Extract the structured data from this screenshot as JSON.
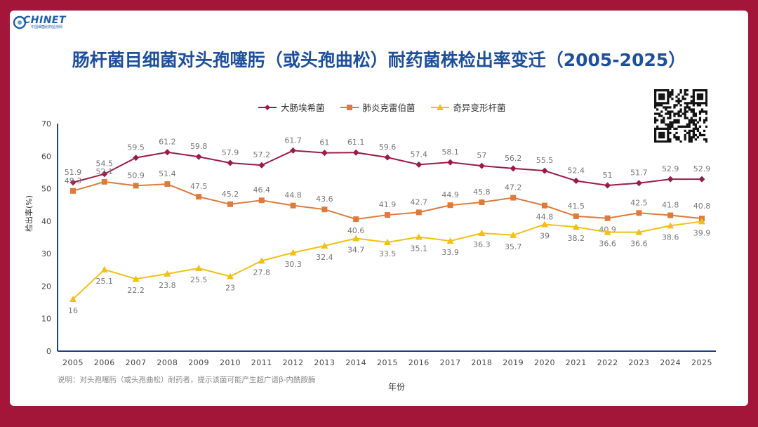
{
  "header": {
    "logo_text": "CHINET",
    "logo_sub": "中国细菌耐药监测网"
  },
  "chart_data": {
    "type": "line",
    "title": "肠杆菌目细菌对头孢噻肟（或头孢曲松）耐药菌株检出率变迁（2005-2025）",
    "xlabel": "年份",
    "ylabel": "检出率(%)",
    "ylim": [
      0,
      70
    ],
    "yticks": [
      0,
      10,
      20,
      30,
      40,
      50,
      60,
      70
    ],
    "x": [
      "2005",
      "2006",
      "2007",
      "2008",
      "2009",
      "2010",
      "2011",
      "2012",
      "2013",
      "2014",
      "2015",
      "2016",
      "2017",
      "2018",
      "2019",
      "2020",
      "2021",
      "2022",
      "2023",
      "2024",
      "2025"
    ],
    "series": [
      {
        "name": "大肠埃希菌",
        "color": "#9b1b46",
        "marker": "diamond",
        "label_pos": "above",
        "values": [
          51.9,
          54.5,
          59.5,
          61.2,
          59.8,
          57.9,
          57.2,
          61.7,
          61,
          61.1,
          59.6,
          57.4,
          58.1,
          57,
          56.2,
          55.5,
          52.4,
          51,
          51.7,
          52.9,
          52.9
        ]
      },
      {
        "name": "肺炎克雷伯菌",
        "color": "#e07a3a",
        "marker": "square",
        "label_pos": "mixed",
        "values": [
          49.3,
          52.1,
          50.9,
          51.4,
          47.5,
          45.2,
          46.4,
          44.8,
          43.6,
          40.6,
          41.9,
          42.7,
          44.9,
          45.8,
          47.2,
          44.8,
          41.5,
          40.9,
          42.5,
          41.8,
          40.8
        ]
      },
      {
        "name": "奇异变形杆菌",
        "color": "#f2c014",
        "marker": "triangle",
        "label_pos": "below",
        "values": [
          16,
          25.1,
          22.2,
          23.8,
          25.5,
          23,
          27.8,
          30.3,
          32.4,
          34.7,
          33.5,
          35.1,
          33.9,
          36.3,
          35.7,
          39,
          38.2,
          36.6,
          36.6,
          38.6,
          39.9
        ]
      }
    ],
    "legend_position": "top",
    "grid": false,
    "note": "说明：对头孢噻肟（或头孢曲松）耐药者，提示该菌可能产生超广谱β-内酰胺酶"
  }
}
